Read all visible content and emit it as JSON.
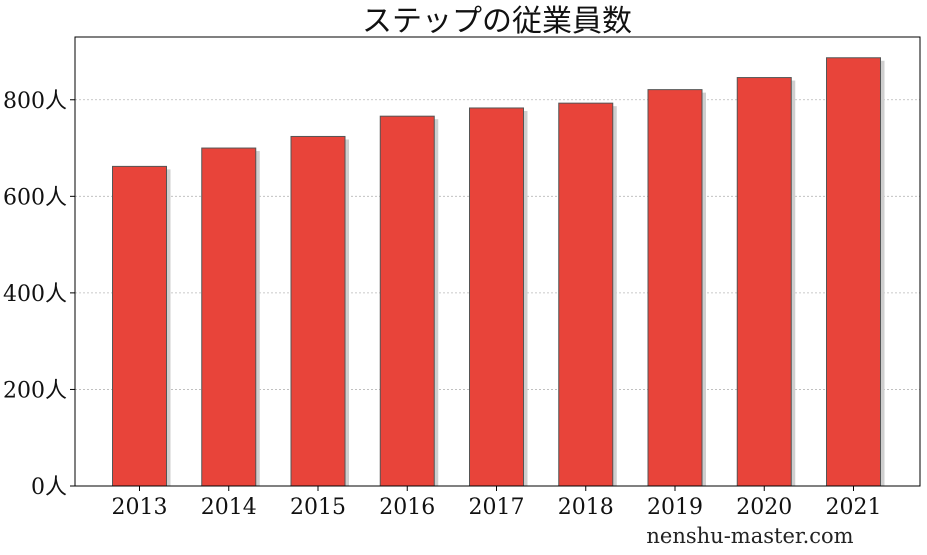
{
  "chart_data": {
    "type": "bar",
    "title": "ステップの従業員数",
    "categories": [
      "2013",
      "2014",
      "2015",
      "2016",
      "2017",
      "2018",
      "2019",
      "2020",
      "2021"
    ],
    "values": [
      662,
      700,
      724,
      766,
      783,
      793,
      821,
      846,
      887
    ],
    "y_unit": "人",
    "ylim": [
      0,
      930
    ],
    "y_ticks": [
      0,
      200,
      400,
      600,
      800
    ],
    "y_tick_labels": [
      "0人",
      "200人",
      "400人",
      "600人",
      "800人"
    ],
    "grid": "horizontal dashed",
    "bar_color": "#e8443a",
    "shadow_color": "#cfcfcf"
  },
  "watermark": "nenshu-master.com"
}
